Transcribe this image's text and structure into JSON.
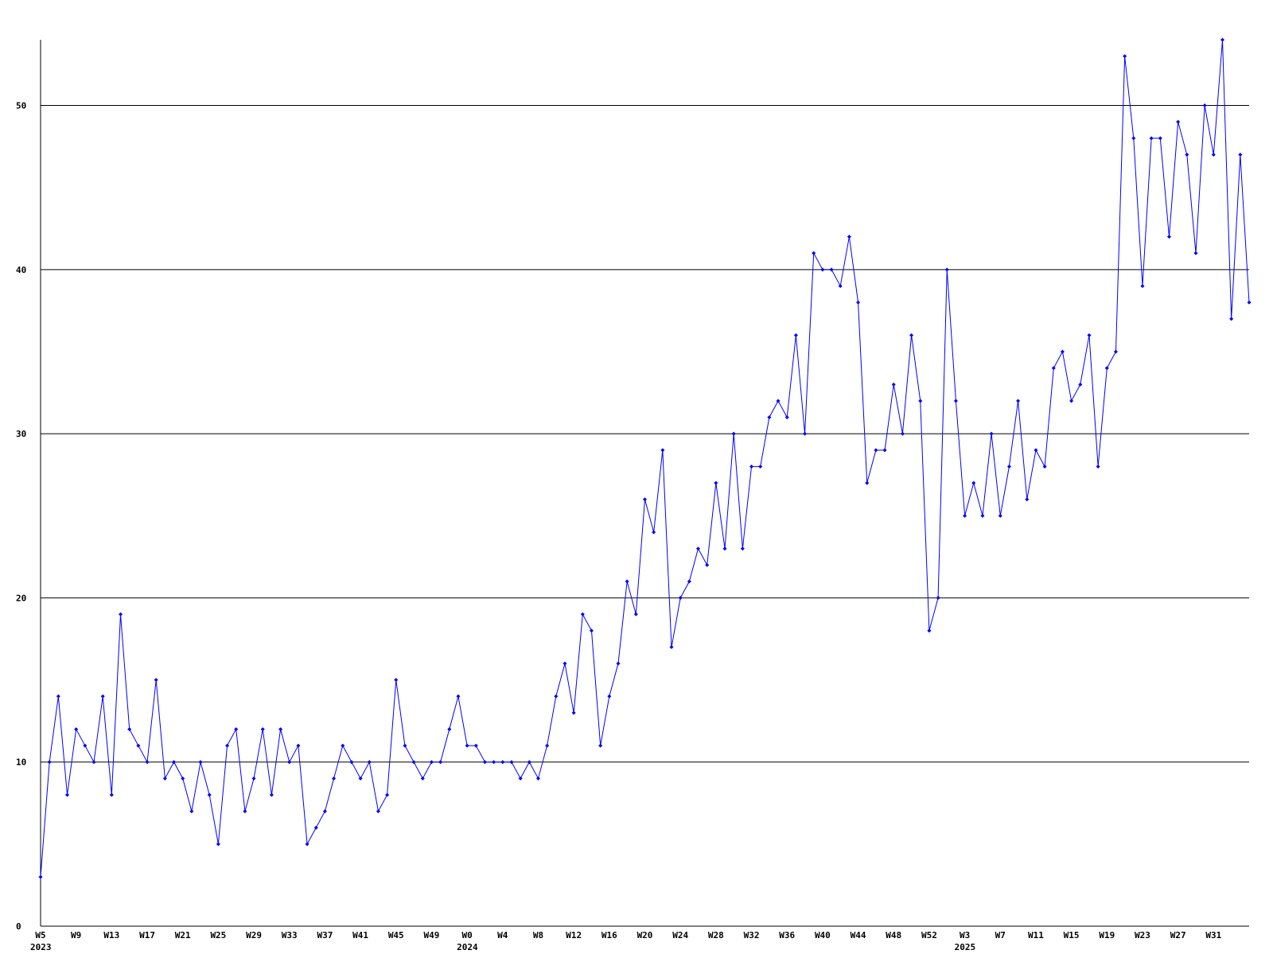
{
  "chart_data": {
    "type": "line",
    "grid": true,
    "categories": [
      "W5",
      null,
      null,
      null,
      "W9",
      null,
      null,
      null,
      "W13",
      null,
      null,
      null,
      "W17",
      null,
      null,
      null,
      "W21",
      null,
      null,
      null,
      "W25",
      null,
      null,
      null,
      "W29",
      null,
      null,
      null,
      "W33",
      null,
      null,
      null,
      "W37",
      null,
      null,
      null,
      "W41",
      null,
      null,
      null,
      "W45",
      null,
      null,
      null,
      "W49",
      null,
      null,
      null,
      "W0",
      null,
      null,
      null,
      "W4",
      null,
      null,
      null,
      "W8",
      null,
      null,
      null,
      "W12",
      null,
      null,
      null,
      "W16",
      null,
      null,
      null,
      "W20",
      null,
      null,
      null,
      "W24",
      null,
      null,
      null,
      "W28",
      null,
      null,
      null,
      "W32",
      null,
      null,
      null,
      "W36",
      null,
      null,
      null,
      "W40",
      null,
      null,
      null,
      "W44",
      null,
      null,
      null,
      "W48",
      null,
      null,
      null,
      "W52",
      null,
      null,
      null,
      "W3",
      null,
      null,
      null,
      "W7",
      null,
      null,
      null,
      "W11",
      null,
      null,
      null,
      "W15",
      null,
      null,
      null,
      "W19",
      null,
      null,
      null,
      "W23",
      null,
      null,
      null,
      "W27",
      null,
      null,
      null,
      "W31",
      null,
      null,
      null,
      null
    ],
    "years": [
      "2023",
      null,
      null,
      null,
      null,
      null,
      null,
      null,
      null,
      null,
      null,
      null,
      null,
      null,
      null,
      null,
      null,
      null,
      null,
      null,
      null,
      null,
      null,
      null,
      null,
      null,
      null,
      null,
      null,
      null,
      null,
      null,
      null,
      null,
      null,
      null,
      null,
      null,
      null,
      null,
      null,
      null,
      null,
      null,
      null,
      null,
      null,
      null,
      "2024",
      null,
      null,
      null,
      null,
      null,
      null,
      null,
      null,
      null,
      null,
      null,
      null,
      null,
      null,
      null,
      null,
      null,
      null,
      null,
      null,
      null,
      null,
      null,
      null,
      null,
      null,
      null,
      null,
      null,
      null,
      null,
      null,
      null,
      null,
      null,
      null,
      null,
      null,
      null,
      null,
      null,
      null,
      null,
      null,
      null,
      null,
      null,
      null,
      null,
      null,
      null,
      null,
      null,
      null,
      null,
      "2025",
      null,
      null,
      null,
      null,
      null,
      null,
      null,
      null,
      null,
      null,
      null,
      null,
      null,
      null,
      null,
      null,
      null,
      null,
      null,
      null,
      null,
      null,
      null,
      null,
      null,
      null,
      null,
      null,
      null,
      null,
      null,
      null
    ],
    "series": [
      {
        "color": "#0000ff",
        "values": [
          3,
          10,
          14,
          8,
          12,
          11,
          10,
          14,
          8,
          19,
          12,
          11,
          10,
          15,
          9,
          10,
          9,
          7,
          10,
          8,
          5,
          11,
          12,
          7,
          9,
          12,
          8,
          12,
          10,
          11,
          5,
          6,
          7,
          9,
          11,
          10,
          9,
          10,
          7,
          8,
          15,
          11,
          10,
          9,
          10,
          10,
          12,
          14,
          11,
          11,
          10,
          10,
          10,
          10,
          9,
          10,
          9,
          11,
          14,
          16,
          13,
          19,
          18,
          11,
          14,
          16,
          21,
          19,
          26,
          24,
          29,
          17,
          20,
          21,
          23,
          22,
          27,
          23,
          30,
          23,
          28,
          28,
          31,
          32,
          31,
          36,
          30,
          41,
          40,
          40,
          39,
          42,
          38,
          27,
          29,
          29,
          33,
          30,
          36,
          32,
          18,
          20,
          40,
          32,
          25,
          27,
          25,
          30,
          25,
          28,
          32,
          26,
          29,
          28,
          34,
          35,
          32,
          33,
          36,
          28,
          34,
          35,
          53,
          48,
          39,
          48,
          48,
          42,
          49,
          47,
          41,
          50,
          47,
          54,
          37,
          47,
          38
        ]
      }
    ],
    "ylim": [
      0,
      54
    ],
    "yticks": [
      0,
      10,
      20,
      30,
      40,
      50
    ]
  }
}
